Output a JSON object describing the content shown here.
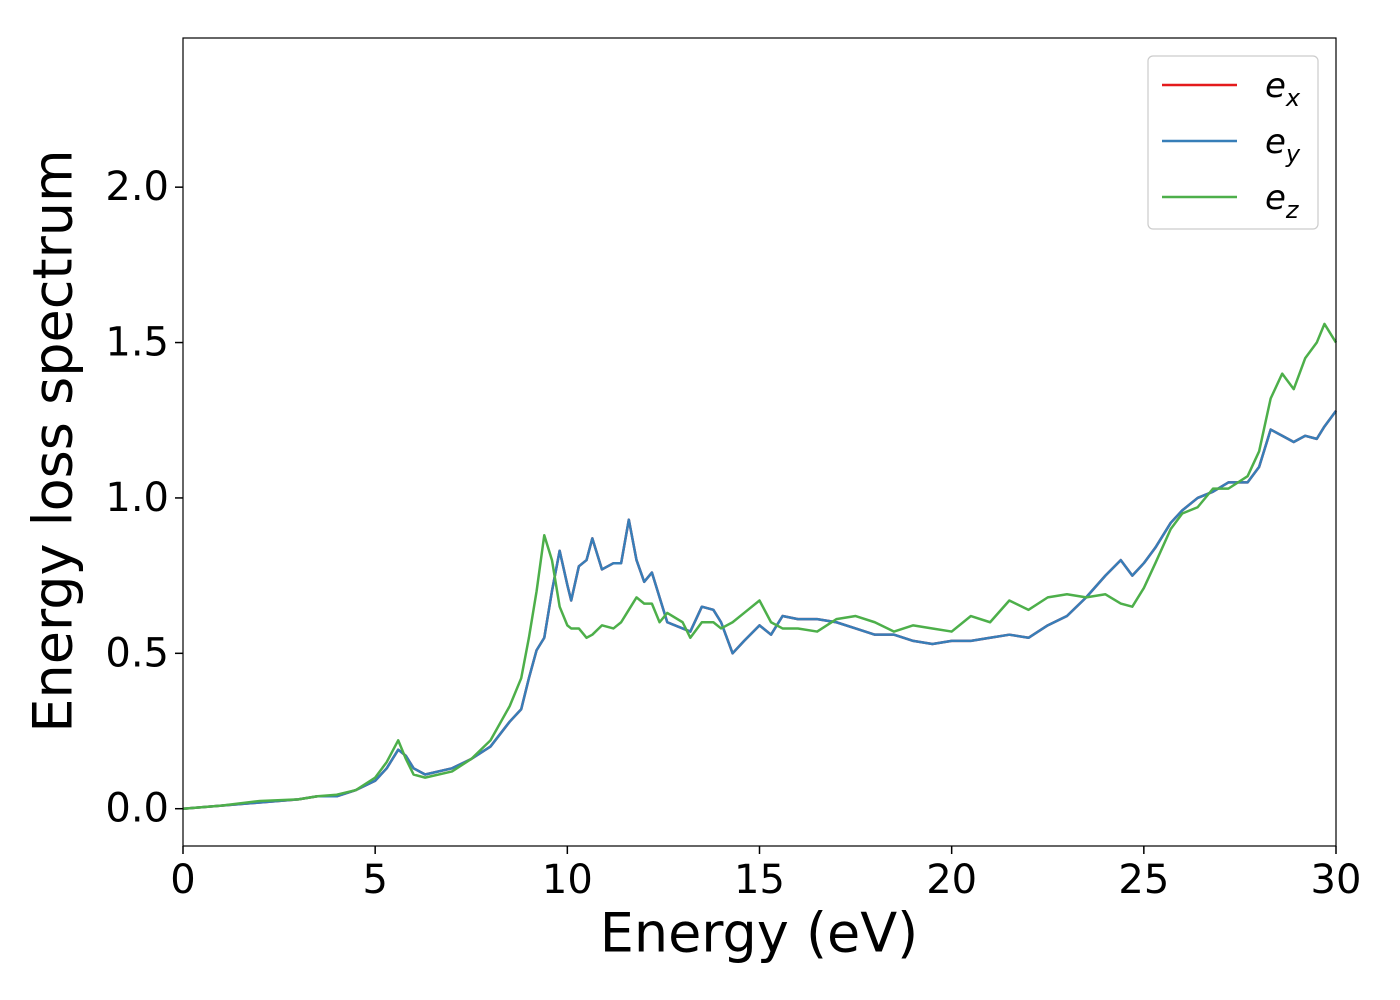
{
  "chart_data": {
    "type": "line",
    "xlabel": "Energy (eV)",
    "ylabel": "Energy loss spectrum",
    "xlim": [
      0,
      30
    ],
    "ylim": [
      -0.12,
      2.48
    ],
    "xticks": [
      0,
      5,
      10,
      15,
      20,
      25,
      30
    ],
    "yticks": [
      {
        "value": 0,
        "label": "0.0"
      },
      0.5,
      {
        "value": 1,
        "label": "1.0"
      },
      1.5,
      {
        "value": 2,
        "label": "2.0"
      }
    ],
    "grid": false,
    "legend": "upper right",
    "x": [
      0,
      1,
      2,
      3,
      3.5,
      4,
      4.5,
      5,
      5.3,
      5.6,
      5.8,
      6.0,
      6.3,
      7,
      7.5,
      8,
      8.5,
      8.8,
      9,
      9.2,
      9.4,
      9.6,
      9.8,
      10.0,
      10.1,
      10.3,
      10.5,
      10.65,
      10.9,
      11.2,
      11.4,
      11.6,
      11.8,
      12.0,
      12.2,
      12.4,
      12.6,
      13.0,
      13.2,
      13.5,
      13.8,
      14.0,
      14.3,
      14.6,
      15.0,
      15.3,
      15.6,
      16,
      16.5,
      17,
      17.5,
      18,
      18.5,
      19,
      19.5,
      20,
      20.5,
      21,
      21.5,
      22,
      22.5,
      23,
      23.5,
      24,
      24.4,
      24.7,
      25,
      25.3,
      25.7,
      26,
      26.4,
      26.8,
      27.2,
      27.7,
      28.0,
      28.3,
      28.6,
      28.9,
      29.2,
      29.5,
      29.7,
      30
    ],
    "series": [
      {
        "name": "e_x",
        "color": "#e41a1c",
        "values": [
          0,
          0.01,
          0.02,
          0.03,
          0.04,
          0.04,
          0.06,
          0.09,
          0.13,
          0.19,
          0.17,
          0.13,
          0.11,
          0.13,
          0.16,
          0.2,
          0.28,
          0.32,
          0.42,
          0.51,
          0.55,
          0.7,
          0.83,
          0.72,
          0.67,
          0.78,
          0.8,
          0.87,
          0.77,
          0.79,
          0.79,
          0.93,
          0.8,
          0.73,
          0.76,
          0.68,
          0.6,
          0.58,
          0.57,
          0.65,
          0.64,
          0.6,
          0.5,
          0.54,
          0.59,
          0.56,
          0.62,
          0.61,
          0.61,
          0.6,
          0.58,
          0.56,
          0.56,
          0.54,
          0.53,
          0.54,
          0.54,
          0.55,
          0.56,
          0.55,
          0.59,
          0.62,
          0.68,
          0.75,
          0.8,
          0.75,
          0.79,
          0.84,
          0.92,
          0.96,
          1.0,
          1.02,
          1.05,
          1.05,
          1.1,
          1.22,
          1.2,
          1.18,
          1.2,
          1.19,
          1.23,
          1.28
        ]
      },
      {
        "name": "e_y",
        "color": "#377eb8",
        "values": [
          0,
          0.01,
          0.02,
          0.03,
          0.04,
          0.04,
          0.06,
          0.09,
          0.13,
          0.19,
          0.17,
          0.13,
          0.11,
          0.13,
          0.16,
          0.2,
          0.28,
          0.32,
          0.42,
          0.51,
          0.55,
          0.7,
          0.83,
          0.72,
          0.67,
          0.78,
          0.8,
          0.87,
          0.77,
          0.79,
          0.79,
          0.93,
          0.8,
          0.73,
          0.76,
          0.68,
          0.6,
          0.58,
          0.57,
          0.65,
          0.64,
          0.6,
          0.5,
          0.54,
          0.59,
          0.56,
          0.62,
          0.61,
          0.61,
          0.6,
          0.58,
          0.56,
          0.56,
          0.54,
          0.53,
          0.54,
          0.54,
          0.55,
          0.56,
          0.55,
          0.59,
          0.62,
          0.68,
          0.75,
          0.8,
          0.75,
          0.79,
          0.84,
          0.92,
          0.96,
          1.0,
          1.02,
          1.05,
          1.05,
          1.1,
          1.22,
          1.2,
          1.18,
          1.2,
          1.19,
          1.23,
          1.28
        ]
      },
      {
        "name": "e_z",
        "color": "#4daf4a",
        "values": [
          0,
          0.01,
          0.025,
          0.03,
          0.04,
          0.045,
          0.06,
          0.1,
          0.15,
          0.22,
          0.16,
          0.11,
          0.1,
          0.12,
          0.16,
          0.22,
          0.33,
          0.42,
          0.55,
          0.7,
          0.88,
          0.8,
          0.65,
          0.59,
          0.58,
          0.58,
          0.55,
          0.56,
          0.59,
          0.58,
          0.6,
          0.64,
          0.68,
          0.66,
          0.66,
          0.6,
          0.63,
          0.6,
          0.55,
          0.6,
          0.6,
          0.58,
          0.6,
          0.63,
          0.67,
          0.6,
          0.58,
          0.58,
          0.57,
          0.61,
          0.62,
          0.6,
          0.57,
          0.59,
          0.58,
          0.57,
          0.62,
          0.6,
          0.67,
          0.64,
          0.68,
          0.69,
          0.68,
          0.69,
          0.66,
          0.65,
          0.71,
          0.79,
          0.9,
          0.95,
          0.97,
          1.03,
          1.03,
          1.07,
          1.15,
          1.32,
          1.4,
          1.35,
          1.45,
          1.5,
          1.56,
          1.5
        ]
      }
    ]
  }
}
